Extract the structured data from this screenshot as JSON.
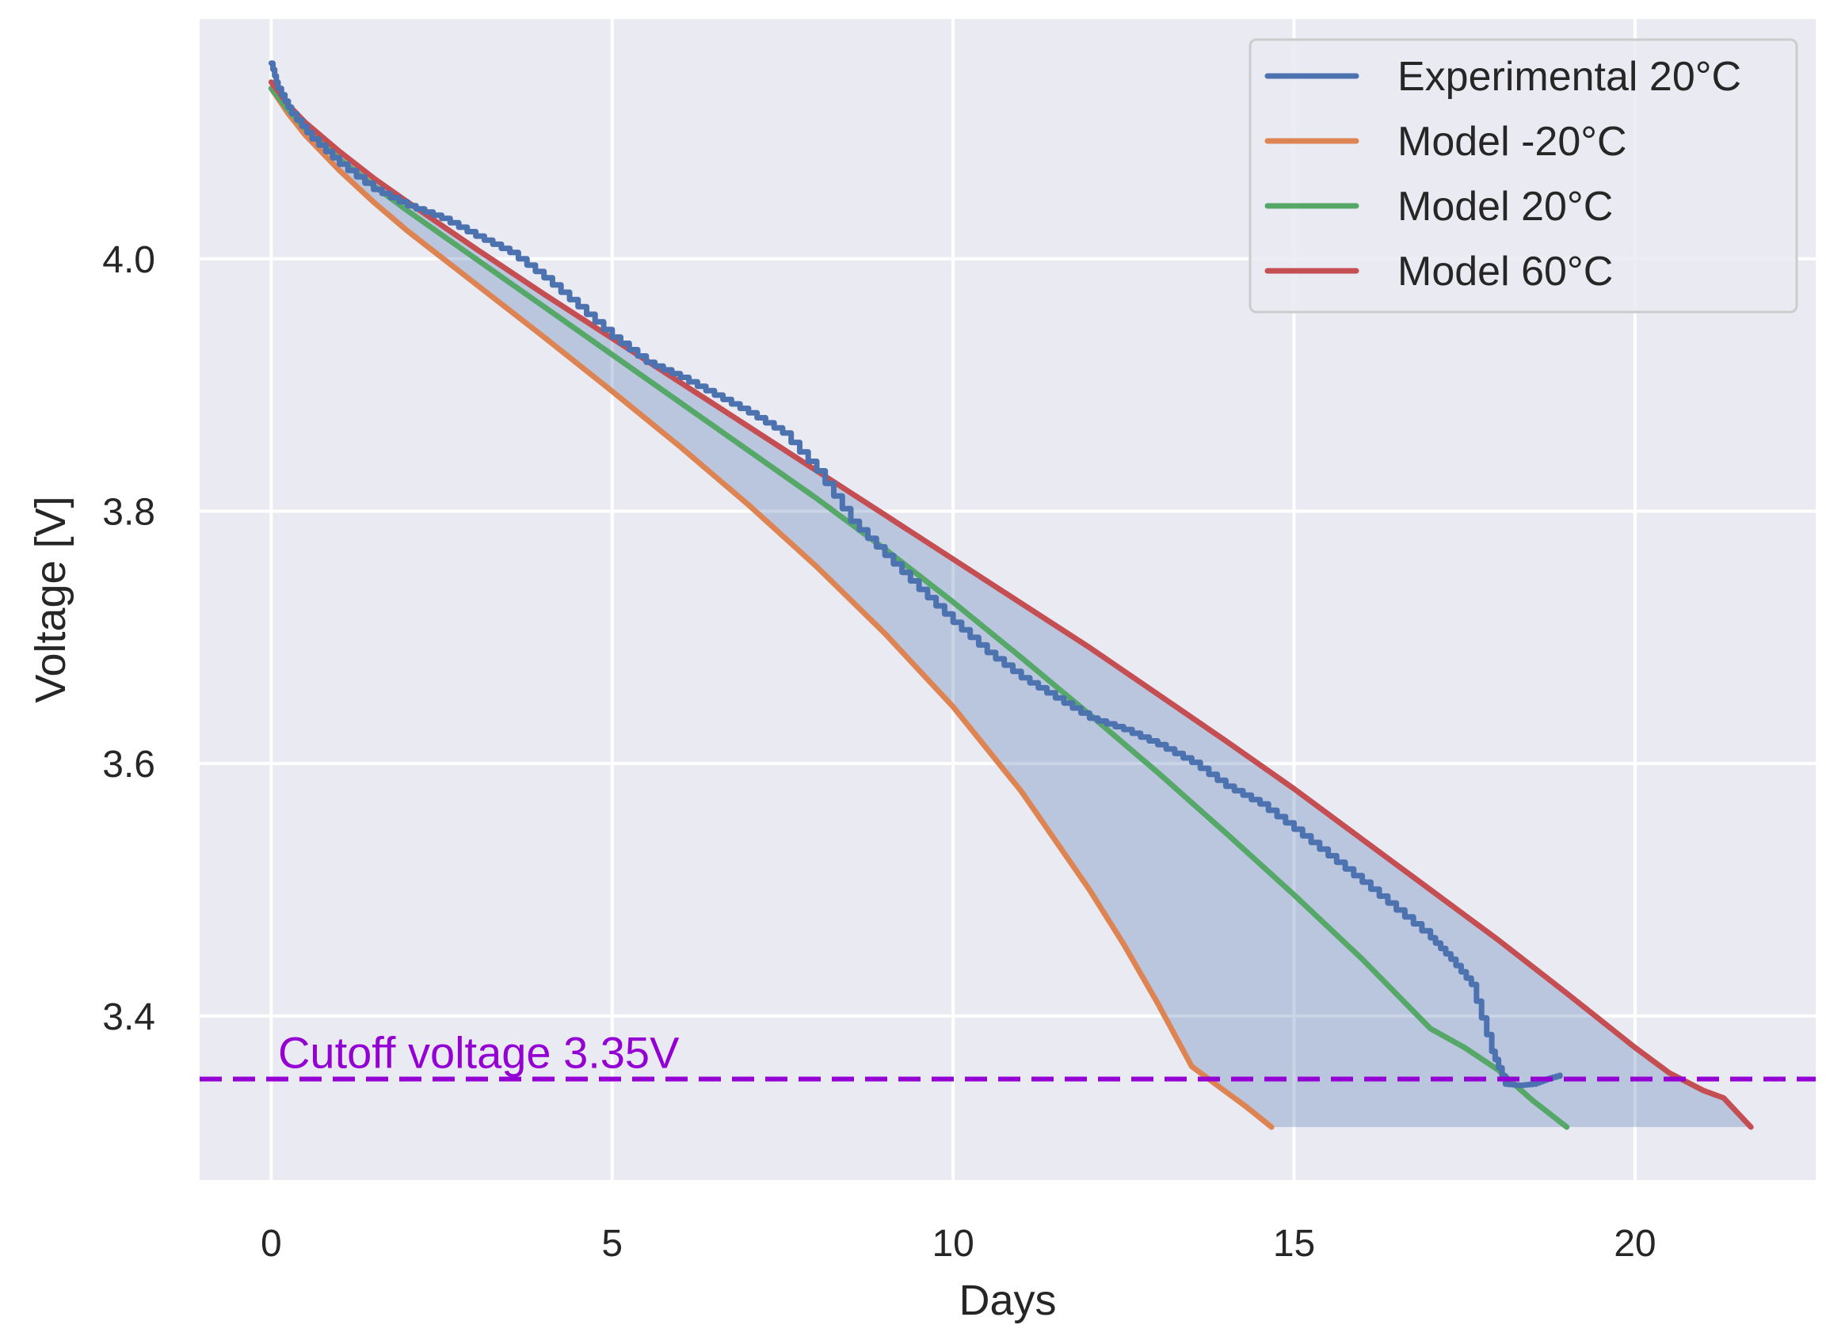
{
  "chart_data": {
    "type": "line",
    "title": "",
    "xlabel": "Days",
    "ylabel": "Voltage [V]",
    "xlim": [
      -1.05,
      22.65
    ],
    "ylim": [
      3.27,
      4.19
    ],
    "xticks": [
      0,
      5,
      10,
      15,
      20
    ],
    "yticks": [
      3.4,
      3.6,
      3.8,
      4.0
    ],
    "xtick_labels": [
      "0",
      "5",
      "10",
      "15",
      "20"
    ],
    "ytick_labels": [
      "3.4",
      "3.6",
      "3.8",
      "4.0"
    ],
    "grid": true,
    "legend_position": "top-right",
    "colors": {
      "background": "#eaeaf2",
      "grid": "#ffffff",
      "experimental": "#4c72b0",
      "model_neg20": "#dd8452",
      "model_20": "#55a868",
      "model_60": "#c44e52",
      "cutoff": "#9400d3",
      "fill": "#4c72b0"
    },
    "series": [
      {
        "name": "Experimental 20°C",
        "key": "experimental",
        "x": [
          0,
          0.1,
          0.3,
          0.6,
          1.0,
          1.5,
          2.0,
          2.5,
          3.0,
          3.5,
          4.0,
          4.5,
          5.0,
          5.5,
          6.0,
          6.5,
          7.0,
          7.5,
          8.0,
          8.5,
          9.0,
          9.5,
          10.0,
          10.5,
          11.0,
          11.5,
          12.0,
          12.5,
          13.0,
          13.5,
          14.0,
          14.5,
          15.0,
          15.5,
          16.0,
          16.5,
          17.0,
          17.3,
          17.6,
          17.9,
          18.1,
          18.3,
          18.5,
          18.7,
          18.9
        ],
        "y": [
          4.155,
          4.135,
          4.115,
          4.095,
          4.075,
          4.055,
          4.042,
          4.032,
          4.018,
          4.005,
          3.985,
          3.962,
          3.938,
          3.918,
          3.906,
          3.892,
          3.878,
          3.862,
          3.832,
          3.792,
          3.765,
          3.738,
          3.712,
          3.688,
          3.668,
          3.652,
          3.636,
          3.627,
          3.615,
          3.601,
          3.582,
          3.568,
          3.548,
          3.527,
          3.506,
          3.484,
          3.462,
          3.445,
          3.425,
          3.372,
          3.346,
          3.345,
          3.346,
          3.35,
          3.353
        ]
      },
      {
        "name": "Model -20°C",
        "key": "model_neg20",
        "x": [
          0,
          0.25,
          0.5,
          1.0,
          1.5,
          2.0,
          3.0,
          4.0,
          5.0,
          6.0,
          7.0,
          8.0,
          9.0,
          10.0,
          11.0,
          12.0,
          12.5,
          13.0,
          13.5,
          14.0,
          14.3,
          14.67
        ],
        "y": [
          4.135,
          4.115,
          4.098,
          4.07,
          4.045,
          4.022,
          3.98,
          3.938,
          3.895,
          3.851,
          3.805,
          3.756,
          3.703,
          3.645,
          3.578,
          3.5,
          3.457,
          3.41,
          3.36,
          3.34,
          3.328,
          3.312
        ]
      },
      {
        "name": "Model 20°C",
        "key": "model_20",
        "x": [
          0,
          0.25,
          0.5,
          1.0,
          1.5,
          2.0,
          3.0,
          4.0,
          5.0,
          6.0,
          7.0,
          8.0,
          9.0,
          10.0,
          11.0,
          12.0,
          13.0,
          14.0,
          15.0,
          16.0,
          17.0,
          17.5,
          18.0,
          18.5,
          19.0
        ],
        "y": [
          4.135,
          4.118,
          4.103,
          4.079,
          4.058,
          4.038,
          4.0,
          3.962,
          3.924,
          3.886,
          3.848,
          3.81,
          3.77,
          3.728,
          3.684,
          3.639,
          3.593,
          3.545,
          3.496,
          3.445,
          3.39,
          3.375,
          3.357,
          3.333,
          3.312
        ]
      },
      {
        "name": "Model 60°C",
        "key": "model_60",
        "x": [
          0,
          0.25,
          0.5,
          1.0,
          1.5,
          2.0,
          3.0,
          4.0,
          5.0,
          6.0,
          7.0,
          8.0,
          9.0,
          10.0,
          11.0,
          12.0,
          13.0,
          14.0,
          15.0,
          16.0,
          17.0,
          18.0,
          19.0,
          20.0,
          20.5,
          21.0,
          21.3,
          21.7
        ],
        "y": [
          4.14,
          4.122,
          4.108,
          4.085,
          4.064,
          4.045,
          4.008,
          3.972,
          3.937,
          3.902,
          3.867,
          3.832,
          3.797,
          3.762,
          3.727,
          3.692,
          3.655,
          3.618,
          3.58,
          3.54,
          3.5,
          3.46,
          3.418,
          3.375,
          3.355,
          3.341,
          3.335,
          3.312
        ]
      }
    ],
    "fill_between": {
      "description": "shaded region between Model -20°C and Model 60°C",
      "floor_y": 3.312
    },
    "hline": {
      "y": 3.35,
      "label": "Cutoff voltage 3.35V",
      "label_x": 0.1
    }
  }
}
